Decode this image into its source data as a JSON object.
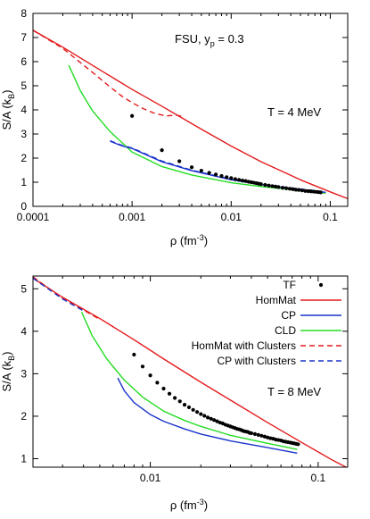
{
  "chart_data": [
    {
      "type": "line",
      "annotation_model": "FSU, y",
      "annotation_sub": "p",
      "annotation_value": " = 0.3",
      "annotation_T": "T = 4 MeV",
      "xlabel": "ρ (fm",
      "xlabel_sup": "-3",
      "xlabel_tail": ")",
      "ylabel": "S/A (k",
      "ylabel_sub": "B",
      "ylabel_tail": ")",
      "xscale": "log",
      "xlim": [
        0.0001,
        0.15
      ],
      "ylim": [
        0,
        8
      ],
      "xticks": [
        {
          "v": 0.0001,
          "label": "0.0001"
        },
        {
          "v": 0.001,
          "label": "0.001"
        },
        {
          "v": 0.01,
          "label": "0.01"
        },
        {
          "v": 0.1,
          "label": "0.1"
        }
      ],
      "yticks": [
        0,
        1,
        2,
        3,
        4,
        5,
        6,
        7,
        8
      ],
      "grid": false,
      "series": [
        {
          "key": "HomMat",
          "color": "#e31a1c",
          "style": "solid",
          "x": [
            0.0001,
            0.0002,
            0.0005,
            0.001,
            0.002,
            0.005,
            0.01,
            0.02,
            0.05,
            0.1,
            0.15
          ],
          "y": [
            7.3,
            6.6,
            5.6,
            4.85,
            4.15,
            3.2,
            2.5,
            1.85,
            1.1,
            0.6,
            0.32
          ]
        },
        {
          "key": "HomMat with Clusters",
          "color": "#e31a1c",
          "style": "dashed",
          "x": [
            0.0001,
            0.0002,
            0.0004,
            0.0006,
            0.0008,
            0.001,
            0.0013,
            0.0017,
            0.0022,
            0.0028,
            0.0033
          ],
          "y": [
            7.3,
            6.55,
            5.55,
            4.95,
            4.55,
            4.3,
            4.05,
            3.85,
            3.75,
            3.78,
            3.72
          ]
        },
        {
          "key": "CLD",
          "color": "#22dd22",
          "style": "solid",
          "x": [
            0.00023,
            0.0003,
            0.0004,
            0.0006,
            0.001,
            0.002,
            0.004,
            0.01,
            0.02,
            0.05,
            0.09
          ],
          "y": [
            5.85,
            4.8,
            3.95,
            3.1,
            2.25,
            1.65,
            1.3,
            0.98,
            0.82,
            0.65,
            0.55
          ]
        },
        {
          "key": "CP",
          "color": "#1a33cc",
          "style": "solid",
          "x": [
            0.0006,
            0.0008,
            0.001,
            0.002,
            0.004,
            0.01,
            0.02,
            0.05,
            0.09
          ],
          "y": [
            2.7,
            2.5,
            2.4,
            1.85,
            1.48,
            1.1,
            0.9,
            0.7,
            0.58
          ]
        },
        {
          "key": "CP with Clusters",
          "color": "#1a33cc",
          "style": "dashed",
          "x": [
            0.0006,
            0.0008,
            0.001,
            0.002,
            0.004,
            0.01,
            0.02,
            0.05,
            0.09
          ],
          "y": [
            2.72,
            2.52,
            2.42,
            1.88,
            1.5,
            1.12,
            0.92,
            0.72,
            0.6
          ]
        },
        {
          "key": "TF",
          "color": "#000000",
          "style": "points",
          "x": [
            0.001,
            0.002,
            0.003,
            0.004,
            0.005,
            0.006,
            0.007,
            0.008,
            0.009,
            0.01,
            0.011,
            0.012,
            0.013,
            0.014,
            0.015,
            0.016,
            0.017,
            0.018,
            0.019,
            0.02,
            0.022,
            0.024,
            0.026,
            0.028,
            0.03,
            0.033,
            0.036,
            0.039,
            0.042,
            0.045,
            0.048,
            0.052,
            0.056,
            0.06,
            0.064,
            0.068,
            0.072,
            0.076,
            0.08
          ],
          "y": [
            3.75,
            2.33,
            1.87,
            1.62,
            1.48,
            1.39,
            1.32,
            1.26,
            1.21,
            1.17,
            1.13,
            1.1,
            1.07,
            1.05,
            1.02,
            1.0,
            0.98,
            0.96,
            0.94,
            0.92,
            0.89,
            0.86,
            0.84,
            0.82,
            0.8,
            0.77,
            0.75,
            0.73,
            0.71,
            0.69,
            0.68,
            0.66,
            0.64,
            0.63,
            0.62,
            0.61,
            0.6,
            0.59,
            0.58
          ]
        }
      ]
    },
    {
      "type": "line",
      "annotation_T": "T = 8 MeV",
      "xlabel": "ρ (fm",
      "xlabel_sup": "-3",
      "xlabel_tail": ")",
      "ylabel": "S/A (k",
      "ylabel_sub": "B",
      "ylabel_tail": ")",
      "xscale": "log",
      "xlim": [
        0.002,
        0.15
      ],
      "ylim": [
        0.8,
        5.3
      ],
      "xticks": [
        {
          "v": 0.01,
          "label": "0.01"
        },
        {
          "v": 0.1,
          "label": "0.1"
        }
      ],
      "yticks": [
        1,
        2,
        3,
        4,
        5
      ],
      "grid": false,
      "legend_position": "top-right",
      "legend": [
        {
          "label": "TF",
          "key": "TF"
        },
        {
          "label": "HomMat",
          "key": "HomMat"
        },
        {
          "label": "CP",
          "key": "CP"
        },
        {
          "label": "CLD",
          "key": "CLD"
        },
        {
          "label": "HomMat with Clusters",
          "key": "HomMat with Clusters"
        },
        {
          "label": "CP with Clusters",
          "key": "CP with Clusters"
        }
      ],
      "series": [
        {
          "key": "HomMat",
          "color": "#e31a1c",
          "style": "solid",
          "x": [
            0.002,
            0.003,
            0.005,
            0.008,
            0.012,
            0.02,
            0.03,
            0.05,
            0.08,
            0.12,
            0.15
          ],
          "y": [
            5.25,
            4.8,
            4.3,
            3.8,
            3.35,
            2.8,
            2.38,
            1.85,
            1.38,
            0.98,
            0.78
          ]
        },
        {
          "key": "HomMat with Clusters",
          "color": "#e31a1c",
          "style": "dashed",
          "x": [
            0.002,
            0.0025,
            0.003,
            0.004,
            0.005
          ],
          "y": [
            5.28,
            5.0,
            4.78,
            4.5,
            4.28
          ]
        },
        {
          "key": "CP with Clusters",
          "color": "#1a33cc",
          "style": "dashed",
          "x": [
            0.002,
            0.0025,
            0.003,
            0.004
          ],
          "y": [
            5.25,
            4.98,
            4.76,
            4.48
          ]
        },
        {
          "key": "CLD",
          "color": "#22dd22",
          "style": "solid",
          "x": [
            0.0039,
            0.0045,
            0.0055,
            0.007,
            0.009,
            0.012,
            0.016,
            0.02,
            0.03,
            0.05,
            0.075
          ],
          "y": [
            4.45,
            3.9,
            3.35,
            2.85,
            2.45,
            2.12,
            1.9,
            1.76,
            1.55,
            1.36,
            1.22
          ]
        },
        {
          "key": "CP",
          "color": "#1a33cc",
          "style": "solid",
          "x": [
            0.0064,
            0.007,
            0.008,
            0.01,
            0.012,
            0.016,
            0.02,
            0.03,
            0.05,
            0.075
          ],
          "y": [
            2.9,
            2.6,
            2.32,
            2.04,
            1.88,
            1.7,
            1.58,
            1.42,
            1.26,
            1.13
          ]
        },
        {
          "key": "TF",
          "color": "#000000",
          "style": "points",
          "x": [
            0.008,
            0.009,
            0.01,
            0.011,
            0.012,
            0.013,
            0.014,
            0.015,
            0.016,
            0.017,
            0.018,
            0.019,
            0.02,
            0.021,
            0.022,
            0.023,
            0.024,
            0.025,
            0.026,
            0.027,
            0.028,
            0.029,
            0.03,
            0.031,
            0.032,
            0.033,
            0.034,
            0.035,
            0.036,
            0.037,
            0.038,
            0.039,
            0.04,
            0.042,
            0.044,
            0.046,
            0.048,
            0.05,
            0.052,
            0.054,
            0.056,
            0.058,
            0.06,
            0.062,
            0.064,
            0.066,
            0.068,
            0.07,
            0.072,
            0.074,
            0.076
          ],
          "y": [
            3.45,
            3.17,
            2.96,
            2.79,
            2.65,
            2.53,
            2.43,
            2.35,
            2.27,
            2.21,
            2.15,
            2.1,
            2.05,
            2.01,
            1.97,
            1.94,
            1.91,
            1.88,
            1.85,
            1.83,
            1.8,
            1.78,
            1.76,
            1.74,
            1.72,
            1.7,
            1.69,
            1.67,
            1.65,
            1.64,
            1.63,
            1.61,
            1.6,
            1.58,
            1.56,
            1.54,
            1.52,
            1.5,
            1.48,
            1.47,
            1.45,
            1.44,
            1.43,
            1.41,
            1.4,
            1.39,
            1.38,
            1.37,
            1.36,
            1.35,
            1.34
          ]
        }
      ]
    }
  ]
}
